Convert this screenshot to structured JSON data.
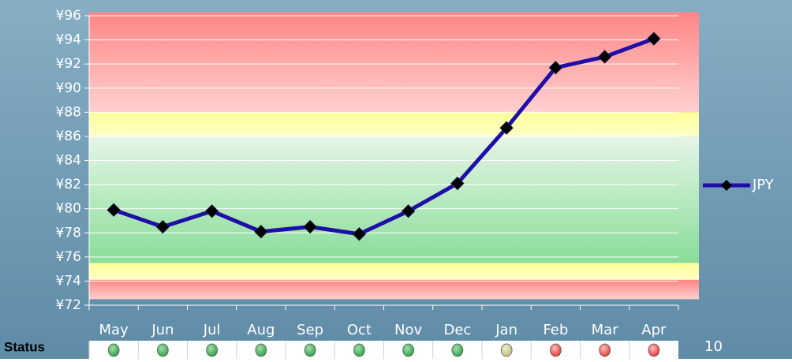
{
  "chart_data": {
    "type": "line",
    "categories": [
      "May",
      "Jun",
      "Jul",
      "Aug",
      "Sep",
      "Oct",
      "Nov",
      "Dec",
      "Jan",
      "Feb",
      "Mar",
      "Apr"
    ],
    "series": [
      {
        "name": "JPY",
        "color": "#1f0fa8",
        "values": [
          79.9,
          78.5,
          79.8,
          78.1,
          78.5,
          77.9,
          79.8,
          82.1,
          86.7,
          91.7,
          92.6,
          94.1
        ]
      }
    ],
    "ylim": [
      72,
      96
    ],
    "yticks": [
      {
        "value": 72,
        "label": "¥72"
      },
      {
        "value": 74,
        "label": "¥74"
      },
      {
        "value": 76,
        "label": "¥76"
      },
      {
        "value": 78,
        "label": "¥78"
      },
      {
        "value": 80,
        "label": "¥80"
      },
      {
        "value": 82,
        "label": "¥82"
      },
      {
        "value": 84,
        "label": "¥84"
      },
      {
        "value": 86,
        "label": "¥86"
      },
      {
        "value": 88,
        "label": "¥88"
      },
      {
        "value": 90,
        "label": "¥90"
      },
      {
        "value": 92,
        "label": "¥92"
      },
      {
        "value": 94,
        "label": "¥94"
      },
      {
        "value": 96,
        "label": "¥96"
      }
    ],
    "grid": true,
    "bands": [
      {
        "from": 88,
        "to": 96.3,
        "color": "red"
      },
      {
        "from": 86,
        "to": 88,
        "color": "yellow"
      },
      {
        "from": 75.5,
        "to": 86,
        "color": "green"
      },
      {
        "from": 74.1,
        "to": 75.5,
        "color": "yellow"
      },
      {
        "from": 72.5,
        "to": 74.1,
        "color": "red"
      }
    ],
    "status_label": "Status",
    "status_colors": [
      "green",
      "green",
      "green",
      "green",
      "green",
      "green",
      "green",
      "green",
      "pale",
      "red",
      "red",
      "red"
    ]
  },
  "page_number": "10"
}
